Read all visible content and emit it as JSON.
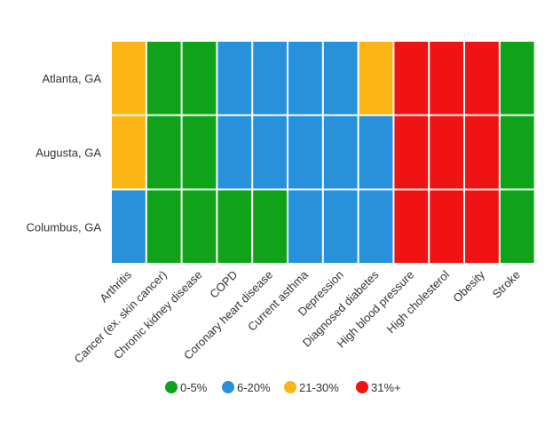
{
  "chart_data": {
    "type": "heatmap",
    "rows": [
      "Atlanta, GA",
      "Augusta, GA",
      "Columbus, GA"
    ],
    "columns": [
      "Arthritis",
      "Cancer (ex. skin cancer)",
      "Chronic kidney disease",
      "COPD",
      "Coronary heart disease",
      "Current asthma",
      "Depression",
      "Diagnosed diabetes",
      "High blood pressure",
      "High cholesterol",
      "Obesity",
      "Stroke"
    ],
    "values": [
      [
        "21-30%",
        "0-5%",
        "0-5%",
        "6-20%",
        "6-20%",
        "6-20%",
        "6-20%",
        "21-30%",
        "31%+",
        "31%+",
        "31%+",
        "0-5%"
      ],
      [
        "21-30%",
        "0-5%",
        "0-5%",
        "6-20%",
        "6-20%",
        "6-20%",
        "6-20%",
        "6-20%",
        "31%+",
        "31%+",
        "31%+",
        "0-5%"
      ],
      [
        "6-20%",
        "0-5%",
        "0-5%",
        "0-5%",
        "0-5%",
        "6-20%",
        "6-20%",
        "6-20%",
        "31%+",
        "31%+",
        "31%+",
        "0-5%"
      ]
    ],
    "legend": [
      {
        "label": "0-5%",
        "color": "#10a31a"
      },
      {
        "label": "6-20%",
        "color": "#2891dc"
      },
      {
        "label": "21-30%",
        "color": "#fbb616"
      },
      {
        "label": "31%+",
        "color": "#f01313"
      }
    ],
    "legend_position": "bottom"
  }
}
